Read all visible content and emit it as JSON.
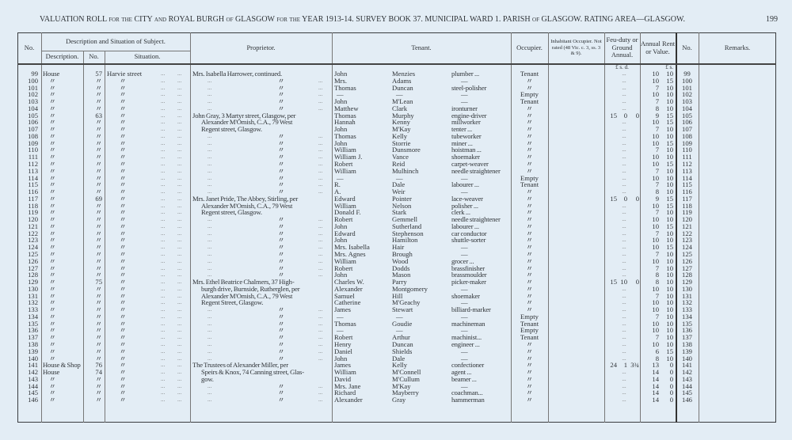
{
  "header": {
    "title": "VALUATION ROLL for the CITY and ROYAL BURGH of GLASGOW for the YEAR 1913-14.   SURVEY BOOK 37.   MUNICIPAL WARD 1.   PARISH of GLASGOW.   RATING AREA—GLASGOW.",
    "page_number": "199"
  },
  "columns": {
    "no": "No.",
    "group": "Description and Situation of Subject.",
    "description": "Description.",
    "number": "No.",
    "situation": "Situation.",
    "proprietor": "Proprietor.",
    "tenant": "Tenant.",
    "occupier": "Occupier.",
    "inhabitant": "Inhabitant Occupier. Not rated (48 Vic. c. 3, ss. 3 & 9).",
    "feu": "Feu-duty or Ground Annual.",
    "rent": "Annual Rent or Value.",
    "no_right": "No.",
    "remarks": "Remarks."
  },
  "units": {
    "feu": "£   s.   d.",
    "rent": "£   s."
  },
  "ditto": "〃",
  "rows": [
    {
      "no": "99",
      "description": "House",
      "number": "57",
      "situation": "Harvie street",
      "proprietor": "Mrs. Isabella Harrower, continued.",
      "first": "John",
      "surname": "Menzies",
      "occupation": "plumber ...",
      "occupier": "Tenant",
      "feu": "...",
      "rent": "10 10"
    },
    {
      "no": "100",
      "description": "〃",
      "number": "〃",
      "situation": "〃",
      "proprietor": "〃",
      "first": "Mrs.",
      "surname": "Adams",
      "occupation": "—",
      "occupier": "〃",
      "feu": "...",
      "rent": "10 15"
    },
    {
      "no": "101",
      "description": "〃",
      "number": "〃",
      "situation": "〃",
      "proprietor": "〃",
      "first": "Thomas",
      "surname": "Duncan",
      "occupation": "steel-polisher",
      "occupier": "〃",
      "feu": "...",
      "rent": "7 10"
    },
    {
      "no": "102",
      "description": "〃",
      "number": "〃",
      "situation": "〃",
      "proprietor": "〃",
      "first": "—",
      "surname": "—",
      "occupation": "—",
      "occupier": "Empty",
      "feu": "...",
      "rent": "10 10"
    },
    {
      "no": "103",
      "description": "〃",
      "number": "〃",
      "situation": "〃",
      "proprietor": "〃",
      "first": "John",
      "surname": "M'Lean",
      "occupation": "—",
      "occupier": "Tenant",
      "feu": "...",
      "rent": "7 10"
    },
    {
      "no": "104",
      "description": "〃",
      "number": "〃",
      "situation": "〃",
      "proprietor": "〃",
      "first": "Matthew",
      "surname": "Clark",
      "occupation": "ironturner",
      "occupier": "〃",
      "feu": "...",
      "rent": "8 10"
    },
    {
      "no": "105",
      "description": "〃",
      "number": "63",
      "situation": "〃",
      "proprietor": "John Gray, 3 Martyr street, Glasgow, per",
      "first": "Thomas",
      "surname": "Murphy",
      "occupation": "engine-driver",
      "occupier": "〃",
      "feu": "15 0 0",
      "rent": "9 15"
    },
    {
      "no": "106",
      "description": "〃",
      "number": "〃",
      "situation": "〃",
      "proprietor": "Alexander M'Omish, C.A., 79 West",
      "indent": true,
      "first": "Hannah",
      "surname": "Kenny",
      "occupation": "millworker",
      "occupier": "〃",
      "feu": "...",
      "rent": "10 15"
    },
    {
      "no": "107",
      "description": "〃",
      "number": "〃",
      "situation": "〃",
      "proprietor": "Regent street, Glasgow.",
      "indent": true,
      "first": "John",
      "surname": "M'Kay",
      "occupation": "tenter ...",
      "occupier": "〃",
      "feu": "...",
      "rent": "7 10"
    },
    {
      "no": "108",
      "description": "〃",
      "number": "〃",
      "situation": "〃",
      "proprietor": "〃",
      "first": "Thomas",
      "surname": "Kelly",
      "occupation": "tubeworker",
      "occupier": "〃",
      "feu": "...",
      "rent": "10 10"
    },
    {
      "no": "109",
      "description": "〃",
      "number": "〃",
      "situation": "〃",
      "proprietor": "〃",
      "first": "John",
      "surname": "Storrie",
      "occupation": "miner ...",
      "occupier": "〃",
      "feu": "...",
      "rent": "10 15"
    },
    {
      "no": "110",
      "description": "〃",
      "number": "〃",
      "situation": "〃",
      "proprietor": "〃",
      "first": "William",
      "surname": "Dunsmore",
      "occupation": "hoistman ...",
      "occupier": "〃",
      "feu": "...",
      "rent": "7 10"
    },
    {
      "no": "111",
      "description": "〃",
      "number": "〃",
      "situation": "〃",
      "proprietor": "〃",
      "first": "William J.",
      "surname": "Vance",
      "occupation": "shoemaker",
      "occupier": "〃",
      "feu": "...",
      "rent": "10 10"
    },
    {
      "no": "112",
      "description": "〃",
      "number": "〃",
      "situation": "〃",
      "proprietor": "〃",
      "first": "Robert",
      "surname": "Reid",
      "occupation": "carpet-weaver",
      "occupier": "〃",
      "feu": "...",
      "rent": "10 15"
    },
    {
      "no": "113",
      "description": "〃",
      "number": "〃",
      "situation": "〃",
      "proprietor": "〃",
      "first": "William",
      "surname": "Mulhinch",
      "occupation": "needle straightener",
      "occupier": "〃",
      "feu": "...",
      "rent": "7 10"
    },
    {
      "no": "114",
      "description": "〃",
      "number": "〃",
      "situation": "〃",
      "proprietor": "〃",
      "first": "—",
      "surname": "—",
      "occupation": "—",
      "occupier": "Empty",
      "feu": "...",
      "rent": "10 10"
    },
    {
      "no": "115",
      "description": "〃",
      "number": "〃",
      "situation": "〃",
      "proprietor": "〃",
      "first": "R.",
      "surname": "Dale",
      "occupation": "labourer ...",
      "occupier": "Tenant",
      "feu": "...",
      "rent": "7 10"
    },
    {
      "no": "116",
      "description": "〃",
      "number": "〃",
      "situation": "〃",
      "proprietor": "〃",
      "first": "A.",
      "surname": "Weir",
      "occupation": "—",
      "occupier": "〃",
      "feu": "...",
      "rent": "8 10"
    },
    {
      "no": "117",
      "description": "〃",
      "number": "69",
      "situation": "〃",
      "proprietor": "Mrs. Janet Pride, The Abbey, Stirling, per",
      "first": "Edward",
      "surname": "Pointer",
      "occupation": "lace-weaver",
      "occupier": "〃",
      "feu": "15 0 0",
      "rent": "9 15"
    },
    {
      "no": "118",
      "description": "〃",
      "number": "〃",
      "situation": "〃",
      "proprietor": "Alexander M'Omish, C.A., 79 West",
      "indent": true,
      "first": "William",
      "surname": "Nelson",
      "occupation": "polisher ...",
      "occupier": "〃",
      "feu": "...",
      "rent": "10 15"
    },
    {
      "no": "119",
      "description": "〃",
      "number": "〃",
      "situation": "〃",
      "proprietor": "Regent street, Glasgow.",
      "indent": true,
      "first": "Donald F.",
      "surname": "Stark",
      "occupation": "clerk ...",
      "occupier": "〃",
      "feu": "...",
      "rent": "7 10"
    },
    {
      "no": "120",
      "description": "〃",
      "number": "〃",
      "situation": "〃",
      "proprietor": "〃",
      "first": "Robert",
      "surname": "Gemmell",
      "occupation": "needle straightener",
      "occupier": "〃",
      "feu": "...",
      "rent": "10 10"
    },
    {
      "no": "121",
      "description": "〃",
      "number": "〃",
      "situation": "〃",
      "proprietor": "〃",
      "first": "John",
      "surname": "Sutherland",
      "occupation": "labourer ...",
      "occupier": "〃",
      "feu": "...",
      "rent": "10 15"
    },
    {
      "no": "122",
      "description": "〃",
      "number": "〃",
      "situation": "〃",
      "proprietor": "〃",
      "first": "Edward",
      "surname": "Stephenson",
      "occupation": "car conductor",
      "occupier": "〃",
      "feu": "...",
      "rent": "7 10"
    },
    {
      "no": "123",
      "description": "〃",
      "number": "〃",
      "situation": "〃",
      "proprietor": "〃",
      "first": "John",
      "surname": "Hamilton",
      "occupation": "shuttle-sorter",
      "occupier": "〃",
      "feu": "...",
      "rent": "10 10"
    },
    {
      "no": "124",
      "description": "〃",
      "number": "〃",
      "situation": "〃",
      "proprietor": "〃",
      "first": "Mrs. Isabella",
      "surname": "Hair",
      "occupation": "—",
      "occupier": "〃",
      "feu": "...",
      "rent": "10 15"
    },
    {
      "no": "125",
      "description": "〃",
      "number": "〃",
      "situation": "〃",
      "proprietor": "〃",
      "first": "Mrs. Agnes",
      "surname": "Brough",
      "occupation": "—",
      "occupier": "〃",
      "feu": "...",
      "rent": "7 10"
    },
    {
      "no": "126",
      "description": "〃",
      "number": "〃",
      "situation": "〃",
      "proprietor": "〃",
      "first": "William",
      "surname": "Wood",
      "occupation": "grocer ...",
      "occupier": "〃",
      "feu": "...",
      "rent": "10 10"
    },
    {
      "no": "127",
      "description": "〃",
      "number": "〃",
      "situation": "〃",
      "proprietor": "〃",
      "first": "Robert",
      "surname": "Dodds",
      "occupation": "brassfinisher",
      "occupier": "〃",
      "feu": "...",
      "rent": "7 10"
    },
    {
      "no": "128",
      "description": "〃",
      "number": "〃",
      "situation": "〃",
      "proprietor": "〃",
      "first": "John",
      "surname": "Mason",
      "occupation": "brassmoulder",
      "occupier": "〃",
      "feu": "...",
      "rent": "8 10"
    },
    {
      "no": "129",
      "description": "〃",
      "number": "75",
      "situation": "〃",
      "proprietor": "Mrs. Ethel Beatrice Chalmers, 37 High-",
      "first": "Charles W.",
      "surname": "Parry",
      "occupation": "picker-maker",
      "occupier": "〃",
      "feu": "15 10 0",
      "rent": "8 10"
    },
    {
      "no": "130",
      "description": "〃",
      "number": "〃",
      "situation": "〃",
      "proprietor": "burgh drive, Burnside, Rutherglen, per",
      "indent": true,
      "first": "Alexander",
      "surname": "Montgomery",
      "occupation": "—",
      "occupier": "〃",
      "feu": "...",
      "rent": "10 10"
    },
    {
      "no": "131",
      "description": "〃",
      "number": "〃",
      "situation": "〃",
      "proprietor": "Alexander M'Omish, C.A., 79 West",
      "indent": true,
      "first": "Samuel",
      "surname": "Hill",
      "occupation": "shoemaker",
      "occupier": "〃",
      "feu": "...",
      "rent": "7 10"
    },
    {
      "no": "132",
      "description": "〃",
      "number": "〃",
      "situation": "〃",
      "proprietor": "Regent Street, Glasgow.",
      "indent": true,
      "first": "Catherine",
      "surname": "M'Geachy",
      "occupation": "—",
      "occupier": "〃",
      "feu": "...",
      "rent": "10 10"
    },
    {
      "no": "133",
      "description": "〃",
      "number": "〃",
      "situation": "〃",
      "proprietor": "〃",
      "first": "James",
      "surname": "Stewart",
      "occupation": "billiard-marker",
      "occupier": "〃",
      "feu": "...",
      "rent": "10 10"
    },
    {
      "no": "134",
      "description": "〃",
      "number": "〃",
      "situation": "〃",
      "proprietor": "〃",
      "first": "—",
      "surname": "—",
      "occupation": "—",
      "occupier": "Empty",
      "feu": "...",
      "rent": "7 10"
    },
    {
      "no": "135",
      "description": "〃",
      "number": "〃",
      "situation": "〃",
      "proprietor": "〃",
      "first": "Thomas",
      "surname": "Goudie",
      "occupation": "machineman",
      "occupier": "Tenant",
      "feu": "...",
      "rent": "10 10"
    },
    {
      "no": "136",
      "description": "〃",
      "number": "〃",
      "situation": "〃",
      "proprietor": "〃",
      "first": "—",
      "surname": "—",
      "occupation": "—",
      "occupier": "Empty",
      "feu": "...",
      "rent": "10 10"
    },
    {
      "no": "137",
      "description": "〃",
      "number": "〃",
      "situation": "〃",
      "proprietor": "〃",
      "first": "Robert",
      "surname": "Arthur",
      "occupation": "machinist...",
      "occupier": "Tenant",
      "feu": "...",
      "rent": "7 10"
    },
    {
      "no": "138",
      "description": "〃",
      "number": "〃",
      "situation": "〃",
      "proprietor": "〃",
      "first": "Henry",
      "surname": "Duncan",
      "occupation": "engineer ...",
      "occupier": "〃",
      "feu": "...",
      "rent": "10 10"
    },
    {
      "no": "139",
      "description": "〃",
      "number": "〃",
      "situation": "〃",
      "proprietor": "〃",
      "first": "Daniel",
      "surname": "Shields",
      "occupation": "—",
      "occupier": "〃",
      "feu": "...",
      "rent": "6 15"
    },
    {
      "no": "140",
      "description": "〃",
      "number": "〃",
      "situation": "〃",
      "proprietor": "〃",
      "first": "John",
      "surname": "Dale",
      "occupation": "—",
      "occupier": "〃",
      "feu": "...",
      "rent": "8 10"
    },
    {
      "no": "141",
      "description": "House & Shop",
      "number": "76",
      "situation": "〃",
      "proprietor": "The Trustees of Alexander Miller, per",
      "first": "James",
      "surname": "Kelly",
      "occupation": "confectioner",
      "occupier": "〃",
      "feu": "24 1 3¾",
      "rent": "13 0"
    },
    {
      "no": "142",
      "description": "House",
      "number": "74",
      "situation": "〃",
      "proprietor": "Speirs & Knox, 74 Canning street, Glas-",
      "indent": true,
      "first": "William",
      "surname": "M'Connell",
      "occupation": "agent ...",
      "occupier": "〃",
      "feu": "...",
      "rent": "14 0"
    },
    {
      "no": "143",
      "description": "〃",
      "number": "〃",
      "situation": "〃",
      "proprietor": "gow.",
      "indent": true,
      "first": "David",
      "surname": "M'Cullum",
      "occupation": "beamer ...",
      "occupier": "〃",
      "feu": "...",
      "rent": "14 0"
    },
    {
      "no": "144",
      "description": "〃",
      "number": "〃",
      "situation": "〃",
      "proprietor": "〃",
      "first": "Mrs. Jane",
      "surname": "M'Kay",
      "occupation": "—",
      "occupier": "〃",
      "feu": "...",
      "rent": "14 0"
    },
    {
      "no": "145",
      "description": "〃",
      "number": "〃",
      "situation": "〃",
      "proprietor": "〃",
      "first": "Richard",
      "surname": "Mayberry",
      "occupation": "coachman...",
      "occupier": "〃",
      "feu": "...",
      "rent": "14 0"
    },
    {
      "no": "146",
      "description": "〃",
      "number": "〃",
      "situation": "〃",
      "proprietor": "〃",
      "first": "Alexander",
      "surname": "Gray",
      "occupation": "hammerman",
      "occupier": "〃",
      "feu": "...",
      "rent": "14 0"
    }
  ]
}
